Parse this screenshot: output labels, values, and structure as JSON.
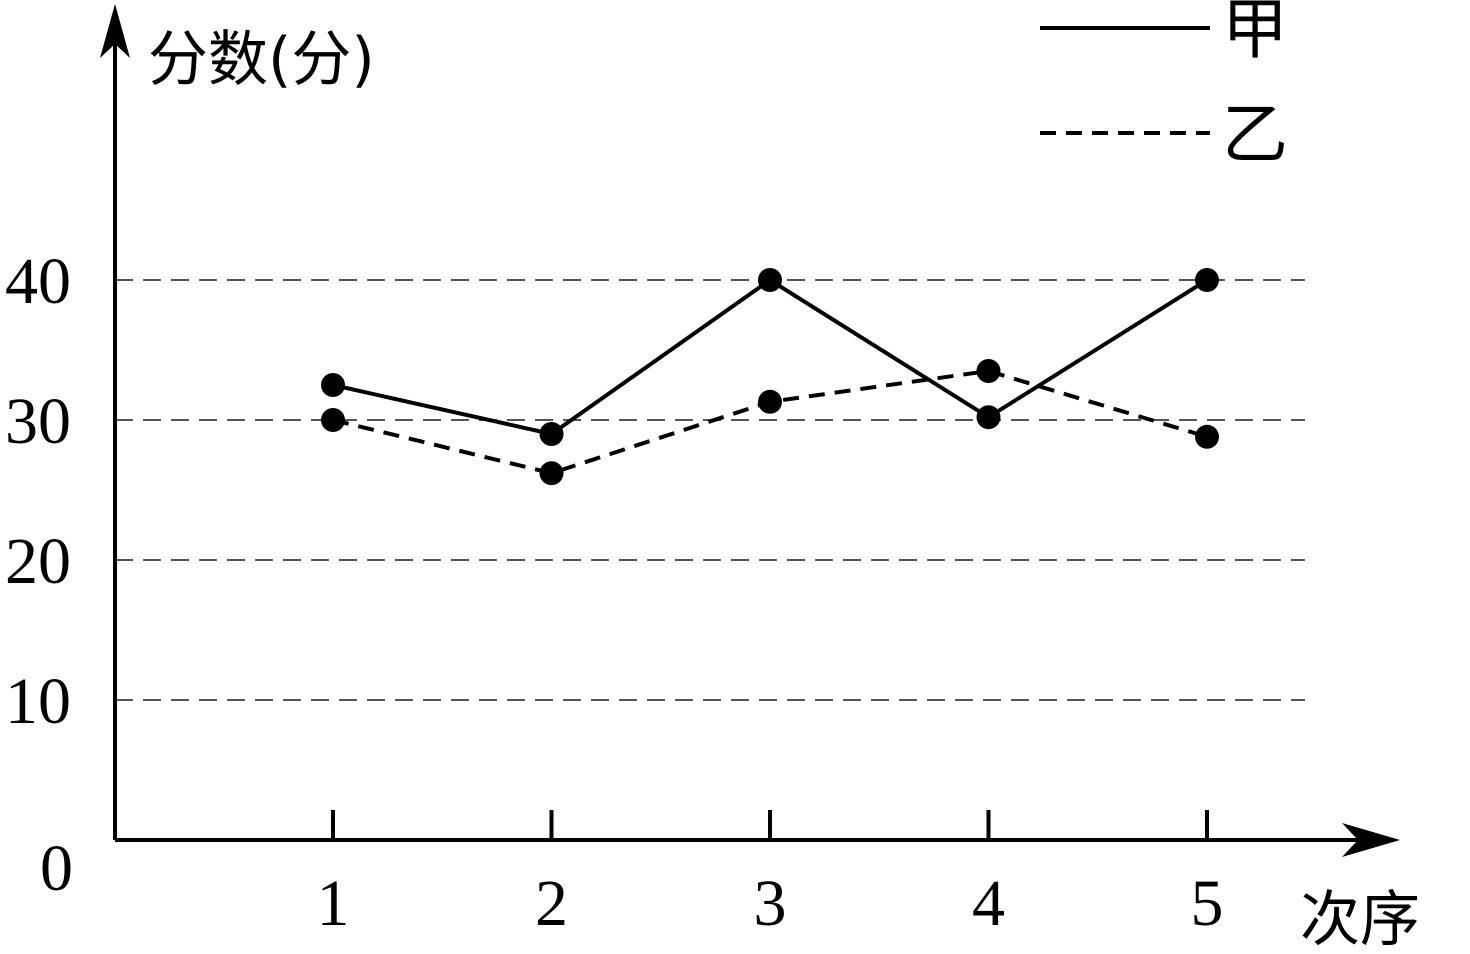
{
  "chart_data": {
    "type": "line",
    "ylabel": "分数(分)",
    "xlabel": "次序",
    "categories": [
      "1",
      "2",
      "3",
      "4",
      "5"
    ],
    "x_ticks": [
      "1",
      "2",
      "3",
      "4",
      "5"
    ],
    "y_ticks": [
      "0",
      "10",
      "20",
      "30",
      "40"
    ],
    "ylim": [
      0,
      40
    ],
    "grid": true,
    "legend_position": "top-right",
    "series": [
      {
        "name": "甲",
        "style": "solid",
        "values": [
          32.5,
          29,
          40,
          30.2,
          40
        ]
      },
      {
        "name": "乙",
        "style": "dashed",
        "values": [
          30,
          26.2,
          31.3,
          33.5,
          28.8
        ]
      }
    ],
    "colors": {
      "line": "#000000",
      "grid": "#555555"
    }
  }
}
